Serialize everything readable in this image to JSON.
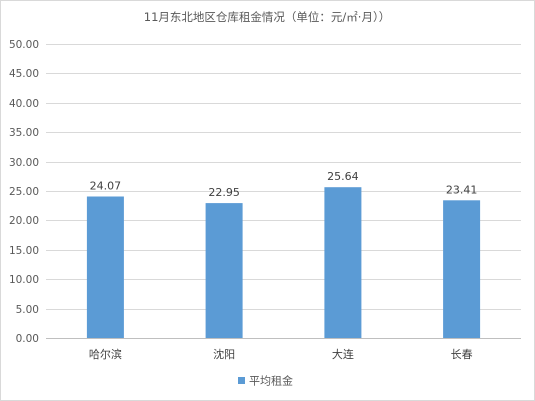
{
  "chart_data": {
    "type": "bar",
    "title": "11月东北地区仓库租金情况（单位：元/㎡·月））",
    "categories": [
      "哈尔滨",
      "沈阳",
      "大连",
      "长春"
    ],
    "series": [
      {
        "name": "平均租金",
        "values": [
          24.07,
          22.95,
          25.64,
          23.41
        ],
        "color": "#5b9bd5"
      }
    ],
    "data_labels": [
      "24.07",
      "22.95",
      "25.64",
      "23.41"
    ],
    "y_ticks": [
      "0.00",
      "5.00",
      "10.00",
      "15.00",
      "20.00",
      "25.00",
      "30.00",
      "35.00",
      "40.00",
      "45.00",
      "50.00"
    ],
    "ylim": [
      0,
      50
    ],
    "grid": true,
    "legend_position": "bottom",
    "xlabel": "",
    "ylabel": ""
  }
}
